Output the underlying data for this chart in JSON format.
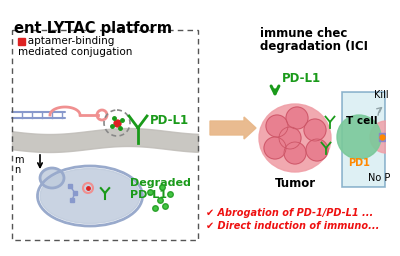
{
  "bg_color": "#ffffff",
  "title_text": "ent LYTAC platform",
  "title_fontsize": 10.5,
  "subtitle1": "   aptamer-binding",
  "subtitle2": "mediated conjugation",
  "subtitle_fontsize": 7.5,
  "pdl1_label": "PD-L1",
  "degraded_label": "Degraded\nPD-L1",
  "green_color": "#1a9a1a",
  "tumor_label": "Tumor",
  "immune_title1": "immune chec",
  "immune_title2": "degradation (ICI",
  "immune_fontsize": 8.5,
  "tcell_label": "T cell",
  "kill_label": "Kill",
  "pd1_label": "PD1",
  "pd1_color": "#ff8800",
  "nopd_label": "No P",
  "checkmark1": "✔ Abrogation of PD-1/PD-L1 ...",
  "checkmark2": "✔ Direct induction of immuno...",
  "check_color": "#ee1111",
  "check_fontsize": 7,
  "dashed_box_color": "#555555",
  "arrow_body_color": "#e8b88a",
  "light_blue_box": "#b8d8e8",
  "light_blue_fill": "#d0eaf0",
  "tumor_color": "#f0a0a8",
  "tumor_inner_color": "#e88090",
  "tcell_color": "#7ac99a",
  "membrane_color": "#c0bdb8",
  "lyso_color": "#c0ccdd",
  "lyso_border": "#99aacc",
  "dna_color": "#8899cc",
  "pink_aptamer": "#f09090",
  "red_dot": "#dd2222",
  "blue_box_border": "#6699bb"
}
